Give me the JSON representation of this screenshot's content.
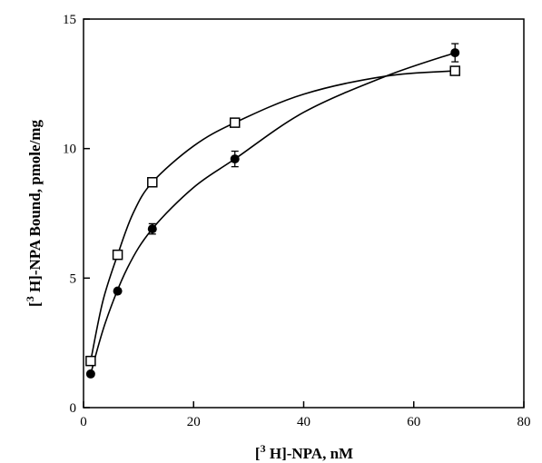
{
  "chart_data": {
    "type": "scatter",
    "xlabel": {
      "prefix": "[",
      "sup": "3",
      "rest": " H]-NPA, nM"
    },
    "ylabel": {
      "prefix": "[",
      "sup": "3",
      "rest": " H]-NPA Bound,  pmole/mg"
    },
    "xlim": [
      0,
      80
    ],
    "ylim": [
      0,
      15
    ],
    "xticks": [
      0,
      20,
      40,
      60,
      80
    ],
    "yticks": [
      0,
      5,
      10,
      15
    ],
    "grid": false,
    "series": [
      {
        "marker": "filled-circle",
        "color": "#000000",
        "points": [
          {
            "x": 1.3,
            "y": 1.3,
            "err": 0
          },
          {
            "x": 6.2,
            "y": 4.5,
            "err": 0
          },
          {
            "x": 12.5,
            "y": 6.9,
            "err": 0.2
          },
          {
            "x": 27.5,
            "y": 9.6,
            "err": 0.3
          },
          {
            "x": 67.5,
            "y": 13.7,
            "err": 0.35
          }
        ],
        "fit_curve": [
          [
            1.3,
            1.3
          ],
          [
            4,
            3.3
          ],
          [
            8,
            5.4
          ],
          [
            12.5,
            6.9
          ],
          [
            20,
            8.5
          ],
          [
            27.5,
            9.6
          ],
          [
            40,
            11.4
          ],
          [
            55,
            12.8
          ],
          [
            67.5,
            13.7
          ]
        ]
      },
      {
        "marker": "open-square",
        "color": "#000000",
        "points": [
          {
            "x": 1.3,
            "y": 1.8
          },
          {
            "x": 6.2,
            "y": 5.9
          },
          {
            "x": 12.5,
            "y": 8.7
          },
          {
            "x": 27.5,
            "y": 11.0
          },
          {
            "x": 67.5,
            "y": 13.0
          }
        ],
        "fit_curve": [
          [
            1.3,
            1.8
          ],
          [
            3.5,
            4.1
          ],
          [
            6.2,
            5.9
          ],
          [
            9,
            7.5
          ],
          [
            12.5,
            8.7
          ],
          [
            20,
            10.1
          ],
          [
            27.5,
            11.0
          ],
          [
            40,
            12.1
          ],
          [
            55,
            12.8
          ],
          [
            67.5,
            13.0
          ]
        ]
      }
    ]
  }
}
